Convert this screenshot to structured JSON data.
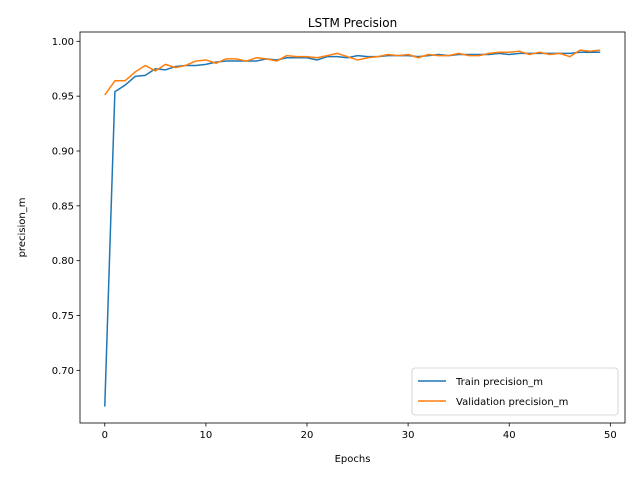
{
  "chart_data": {
    "type": "line",
    "title": "LSTM Precision",
    "xlabel": "Epochs",
    "ylabel": "precision_m",
    "xlim": [
      -2.45,
      51.45
    ],
    "ylim": [
      0.652,
      1.0085
    ],
    "xticks": [
      0,
      10,
      20,
      30,
      40,
      50
    ],
    "yticks": [
      0.7,
      0.75,
      0.8,
      0.85,
      0.9,
      0.95,
      1.0
    ],
    "ytick_labels": [
      "0.70",
      "0.75",
      "0.80",
      "0.85",
      "0.90",
      "0.95",
      "1.00"
    ],
    "grid": false,
    "legend_position": "lower-right",
    "x": [
      0,
      1,
      2,
      3,
      4,
      5,
      6,
      7,
      8,
      9,
      10,
      11,
      12,
      13,
      14,
      15,
      16,
      17,
      18,
      19,
      20,
      21,
      22,
      23,
      24,
      25,
      26,
      27,
      28,
      29,
      30,
      31,
      32,
      33,
      34,
      35,
      36,
      37,
      38,
      39,
      40,
      41,
      42,
      43,
      44,
      45,
      46,
      47,
      48,
      49
    ],
    "series": [
      {
        "name": "Train precision_m",
        "color": "#1f77b4",
        "values": [
          0.667,
          0.954,
          0.96,
          0.968,
          0.969,
          0.975,
          0.974,
          0.977,
          0.978,
          0.978,
          0.979,
          0.981,
          0.982,
          0.982,
          0.982,
          0.982,
          0.984,
          0.983,
          0.985,
          0.985,
          0.985,
          0.983,
          0.986,
          0.986,
          0.985,
          0.987,
          0.986,
          0.986,
          0.987,
          0.987,
          0.987,
          0.986,
          0.987,
          0.988,
          0.987,
          0.988,
          0.988,
          0.988,
          0.988,
          0.989,
          0.988,
          0.989,
          0.989,
          0.989,
          0.989,
          0.989,
          0.989,
          0.99,
          0.99,
          0.99
        ]
      },
      {
        "name": "Validation precision_m",
        "color": "#ff7f0e",
        "values": [
          0.951,
          0.964,
          0.964,
          0.972,
          0.978,
          0.973,
          0.979,
          0.976,
          0.978,
          0.982,
          0.983,
          0.98,
          0.984,
          0.984,
          0.982,
          0.985,
          0.984,
          0.982,
          0.987,
          0.986,
          0.986,
          0.985,
          0.987,
          0.989,
          0.986,
          0.983,
          0.985,
          0.986,
          0.988,
          0.987,
          0.988,
          0.985,
          0.988,
          0.987,
          0.987,
          0.989,
          0.987,
          0.987,
          0.989,
          0.99,
          0.99,
          0.991,
          0.988,
          0.99,
          0.988,
          0.989,
          0.986,
          0.992,
          0.991,
          0.992
        ]
      }
    ]
  }
}
